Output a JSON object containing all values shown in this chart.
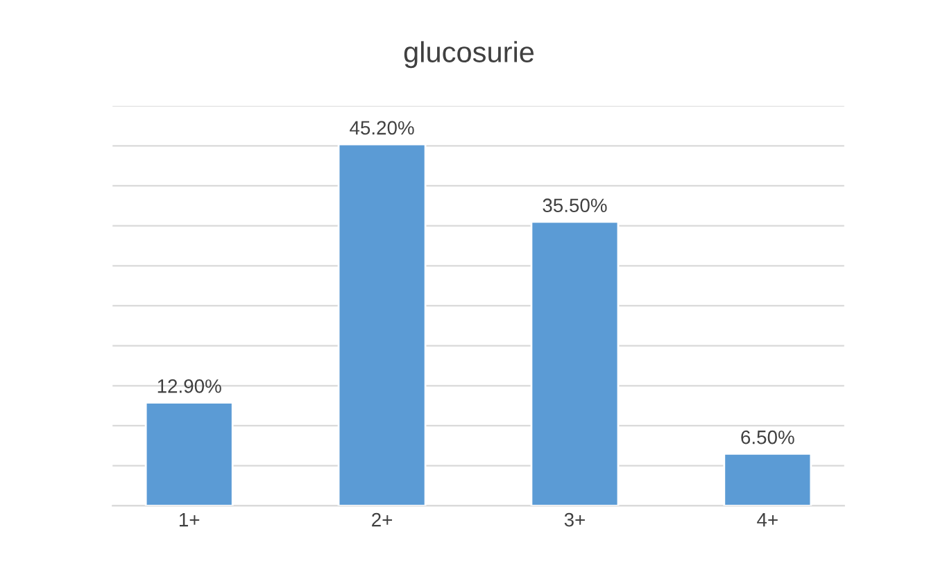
{
  "chart_data": {
    "type": "bar",
    "title": "glucosurie",
    "categories": [
      "1+",
      "2+",
      "3+",
      "4+"
    ],
    "values": [
      12.9,
      45.2,
      35.5,
      6.5
    ],
    "value_labels": [
      "12.90%",
      "45.20%",
      "35.50%",
      "6.50%"
    ],
    "color": "#5b9bd5",
    "ylim": [
      0,
      50
    ],
    "yticks": [
      {
        "value": 0,
        "label": null
      },
      {
        "value": 5,
        "label": null
      },
      {
        "value": 10,
        "label": null
      },
      {
        "value": 15,
        "label": null
      },
      {
        "value": 20,
        "label": null
      },
      {
        "value": 25,
        "label": null
      },
      {
        "value": 30,
        "label": null
      },
      {
        "value": 35,
        "label": null
      },
      {
        "value": 40,
        "label": null
      },
      {
        "value": 45,
        "label": null
      },
      {
        "value": 50,
        "label": null
      }
    ],
    "grid": "y",
    "legend": false,
    "tick_labels": "x"
  }
}
